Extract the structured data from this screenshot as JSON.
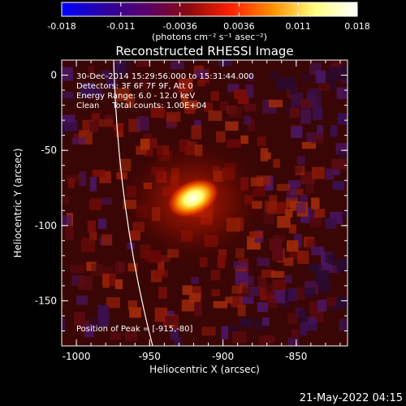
{
  "colorbar": {
    "ticks": [
      "-0.018",
      "-0.011",
      "-0.0036",
      "0.0036",
      "0.011",
      "0.018"
    ],
    "units": "(photons cm⁻² s⁻¹ asec⁻²)",
    "colormap": [
      "#0000ff",
      "#2a00a0",
      "#5a006a",
      "#8a0a10",
      "#ff2000",
      "#ff9000",
      "#ffff80",
      "#ffffff"
    ]
  },
  "plot": {
    "title": "Reconstructed RHESSI Image",
    "info_lines": [
      "30-Dec-2014 15:29:56.000 to 15:31:44.000",
      "Detectors: 3F 6F 7F 9F, Att 0",
      "Energy Range: 6.0 - 12.0 keV",
      "Clean     Total counts: 1.00E+04"
    ],
    "peak_label": "Position of Peak = [-915,-80]",
    "xlabel": "Heliocentric X (arcsec)",
    "ylabel": "Heliocentric Y (arcsec)",
    "xticks": [
      "-1000",
      "-950",
      "-900",
      "-850"
    ],
    "yticks": [
      "0",
      "-50",
      "-100",
      "-150"
    ],
    "xlim": [
      -1010,
      -815
    ],
    "ylim": [
      -180,
      10
    ],
    "peak": {
      "x": -915,
      "y": -80
    }
  },
  "footer": {
    "date": "21-May-2022 04:15"
  }
}
